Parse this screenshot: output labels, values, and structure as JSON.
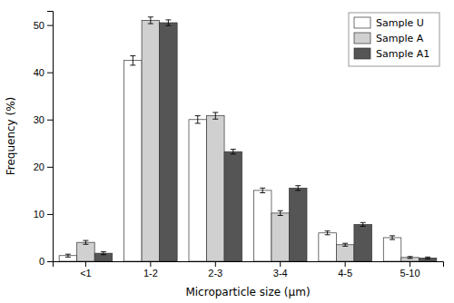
{
  "chart_data": {
    "type": "bar",
    "xlabel": "Microparticle size (μm)",
    "ylabel": "Frequency (%)",
    "categories": [
      "<1",
      "1-2",
      "2-3",
      "3-4",
      "4-5",
      "5-10"
    ],
    "series": [
      {
        "name": "Sample U",
        "color": "#ffffff",
        "values": [
          1.2,
          42.5,
          30.0,
          15.0,
          6.0,
          5.0
        ],
        "errors": [
          0.3,
          1.0,
          0.8,
          0.5,
          0.4,
          0.4
        ]
      },
      {
        "name": "Sample A",
        "color": "#d0d0d0",
        "values": [
          4.0,
          51.0,
          30.8,
          10.2,
          3.5,
          0.8
        ],
        "errors": [
          0.4,
          0.7,
          0.7,
          0.5,
          0.3,
          0.2
        ]
      },
      {
        "name": "Sample A1",
        "color": "#555555",
        "values": [
          1.7,
          50.5,
          23.2,
          15.5,
          7.8,
          0.7
        ],
        "errors": [
          0.3,
          0.6,
          0.5,
          0.5,
          0.4,
          0.2
        ]
      }
    ],
    "ylim": [
      0,
      53
    ],
    "yticks": [
      0,
      10,
      20,
      30,
      40,
      50
    ],
    "grid": false,
    "legend": "upper right"
  }
}
